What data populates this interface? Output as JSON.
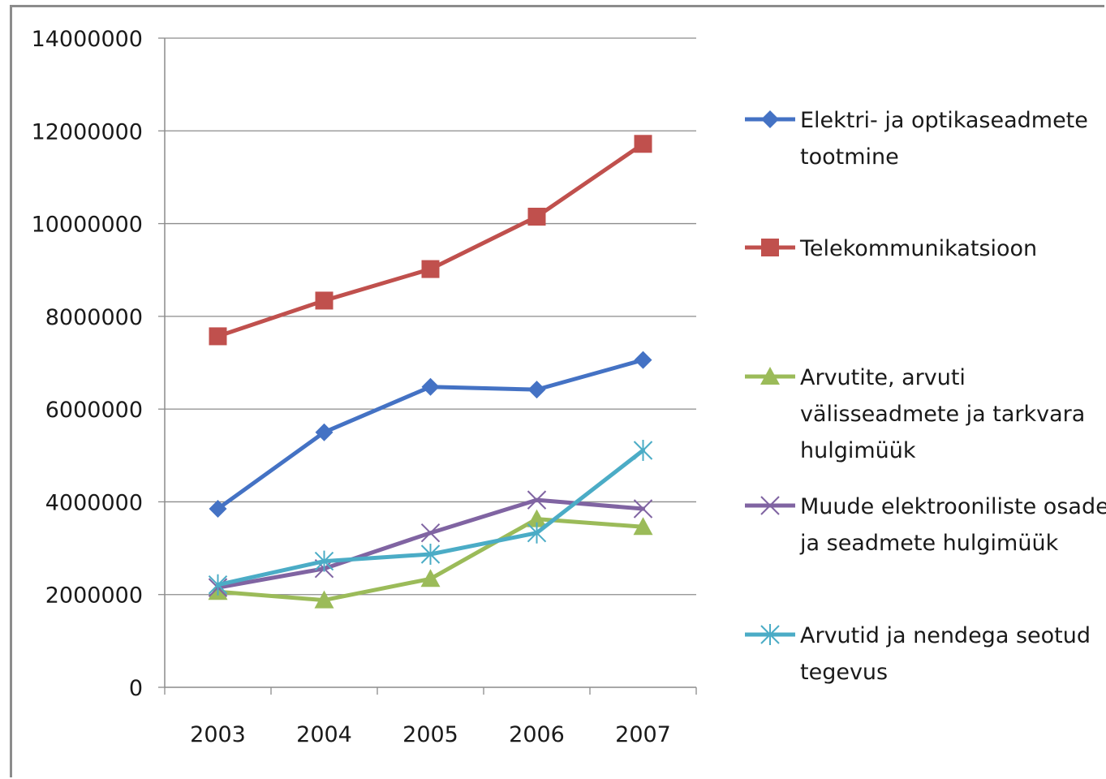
{
  "chart_data": {
    "type": "line",
    "title": "",
    "xlabel": "",
    "ylabel": "",
    "categories": [
      "2003",
      "2004",
      "2005",
      "2006",
      "2007"
    ],
    "ylim": [
      0,
      14000000
    ],
    "yticks": [
      0,
      2000000,
      4000000,
      6000000,
      8000000,
      10000000,
      12000000,
      14000000
    ],
    "ytick_labels": [
      "0",
      "2000000",
      "4000000",
      "6000000",
      "8000000",
      "10000000",
      "12000000",
      "14000000"
    ],
    "grid": "horizontal",
    "legend_position": "right",
    "series": [
      {
        "name": "Elektri- ja optikaseadmete tootmine",
        "legend_lines": [
          "Elektri- ja optikaseadmete",
          "tootmine"
        ],
        "color": "#4472c4",
        "marker": "diamond",
        "values": [
          3850000,
          5500000,
          6480000,
          6420000,
          7060000
        ]
      },
      {
        "name": "Telekommunikatsioon",
        "legend_lines": [
          "Telekommunikatsioon"
        ],
        "color": "#c0504d",
        "marker": "square",
        "values": [
          7570000,
          8340000,
          9020000,
          10150000,
          11720000
        ]
      },
      {
        "name": "Arvutite, arvuti välisseadmete ja tarkvara hulgimüük",
        "legend_lines": [
          "Arvutite, arvuti",
          "välisseadmete ja tarkvara",
          "hulgimüük"
        ],
        "color": "#9bbb59",
        "marker": "triangle",
        "values": [
          2060000,
          1880000,
          2340000,
          3630000,
          3460000
        ]
      },
      {
        "name": "Muude elektrooniliste osade ja seadmete hulgimüük",
        "legend_lines": [
          "Muude elektrooniliste osade",
          "ja seadmete hulgimüük"
        ],
        "color": "#8064a2",
        "marker": "x",
        "values": [
          2150000,
          2560000,
          3330000,
          4040000,
          3850000
        ]
      },
      {
        "name": "Arvutid ja nendega seotud tegevus",
        "legend_lines": [
          "Arvutid ja nendega seotud",
          "tegevus"
        ],
        "color": "#4bacc6",
        "marker": "star",
        "values": [
          2210000,
          2720000,
          2870000,
          3330000,
          5110000
        ]
      }
    ]
  }
}
